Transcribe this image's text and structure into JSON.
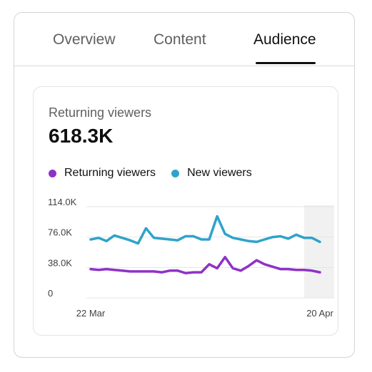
{
  "tabs": [
    {
      "label": "Overview",
      "active": false
    },
    {
      "label": "Content",
      "active": false
    },
    {
      "label": "Audience",
      "active": true
    }
  ],
  "card": {
    "metric_label": "Returning viewers",
    "metric_value": "618.3K"
  },
  "colors": {
    "returning": "#8e32c6",
    "new": "#2fa3c9",
    "shade": "#f1f1f1",
    "grid": "#e5e5e5"
  },
  "chart_data": {
    "type": "line",
    "x": [
      "2024-03-22",
      "2024-03-23",
      "2024-03-24",
      "2024-03-25",
      "2024-03-26",
      "2024-03-27",
      "2024-03-28",
      "2024-03-29",
      "2024-03-30",
      "2024-03-31",
      "2024-04-01",
      "2024-04-02",
      "2024-04-03",
      "2024-04-04",
      "2024-04-05",
      "2024-04-06",
      "2024-04-07",
      "2024-04-08",
      "2024-04-09",
      "2024-04-10",
      "2024-04-11",
      "2024-04-12",
      "2024-04-13",
      "2024-04-14",
      "2024-04-15",
      "2024-04-16",
      "2024-04-17",
      "2024-04-18",
      "2024-04-19",
      "2024-04-20"
    ],
    "x_tick_labels": [
      {
        "index": 0,
        "label": "22 Mar"
      },
      {
        "index": 29,
        "label": "20 Apr"
      }
    ],
    "series": [
      {
        "name": "Returning viewers",
        "values": [
          36,
          35,
          36,
          35,
          34,
          33,
          33,
          33,
          33,
          32,
          34,
          34,
          31,
          32,
          32,
          42,
          37,
          51,
          37,
          34,
          40,
          47,
          42,
          39,
          36,
          36,
          35,
          35,
          34,
          32
        ]
      },
      {
        "name": "New viewers",
        "values": [
          73,
          75,
          71,
          78,
          75,
          72,
          68,
          87,
          75,
          74,
          73,
          72,
          77,
          77,
          73,
          73,
          102,
          80,
          75,
          73,
          71,
          70,
          73,
          76,
          77,
          74,
          79,
          75,
          75,
          70
        ]
      }
    ],
    "y_ticks": [
      {
        "value": 0,
        "label": "0"
      },
      {
        "value": 38,
        "label": "38.0K"
      },
      {
        "value": 76,
        "label": "76.0K"
      },
      {
        "value": 114,
        "label": "114.0K"
      }
    ],
    "ylim": [
      0,
      114
    ],
    "y_unit": "K",
    "shaded_range": [
      "2024-04-18",
      "2024-04-20"
    ],
    "legend_position": "top-left",
    "grid": true
  }
}
